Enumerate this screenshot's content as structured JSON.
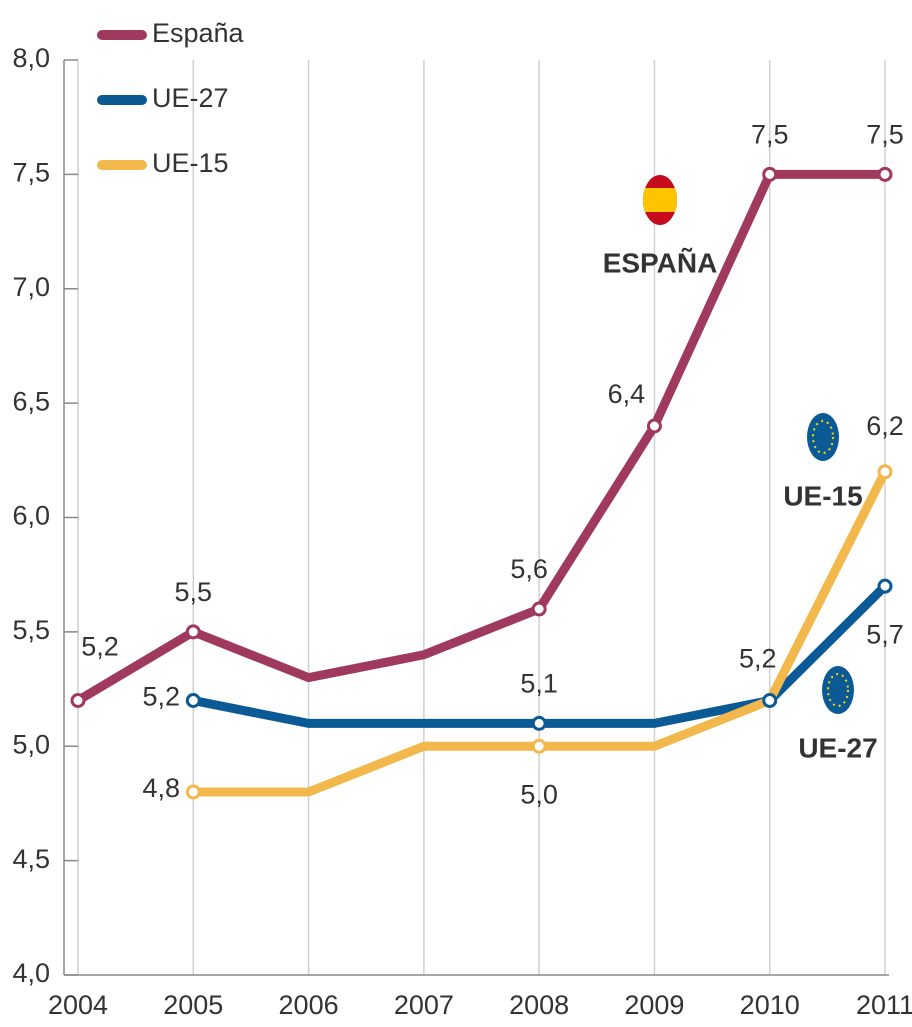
{
  "chart_data": {
    "type": "line",
    "categories": [
      "2004",
      "2005",
      "2006",
      "2007",
      "2008",
      "2009",
      "2010",
      "2011"
    ],
    "series": [
      {
        "name": "España",
        "color": "#a0395e",
        "values": [
          5.2,
          5.5,
          5.3,
          5.4,
          5.6,
          6.4,
          7.5,
          7.5
        ],
        "value_labels": [
          "5,2",
          "5,5",
          null,
          null,
          "5,6",
          "6,4",
          "7,5",
          "7,5"
        ]
      },
      {
        "name": "UE-27",
        "color": "#0b5a96",
        "values": [
          null,
          5.2,
          5.1,
          5.1,
          5.1,
          5.1,
          5.2,
          5.7
        ],
        "value_labels": [
          null,
          "5,2",
          null,
          null,
          "5,1",
          null,
          "5,2",
          "5,7"
        ]
      },
      {
        "name": "UE-15",
        "color": "#f2b84b",
        "values": [
          null,
          4.8,
          4.8,
          5.0,
          5.0,
          5.0,
          5.2,
          6.2
        ],
        "value_labels": [
          null,
          "4,8",
          null,
          null,
          "5,0",
          null,
          null,
          "6,2"
        ]
      }
    ],
    "ylim": [
      4,
      8
    ],
    "yticks": [
      {
        "value": 4,
        "label": "4,0"
      },
      {
        "value": 4.5,
        "label": "4,5"
      },
      {
        "value": 5,
        "label": "5,0"
      },
      {
        "value": 5.5,
        "label": "5,5"
      },
      {
        "value": 6,
        "label": "6,0"
      },
      {
        "value": 6.5,
        "label": "6,5"
      },
      {
        "value": 7,
        "label": "7,0"
      },
      {
        "value": 7.5,
        "label": "7,5"
      },
      {
        "value": 8,
        "label": "8,0"
      }
    ],
    "annotations": [
      "ESPAÑA",
      "UE-15",
      "UE-27"
    ],
    "grid": true,
    "legend": "upper left"
  }
}
